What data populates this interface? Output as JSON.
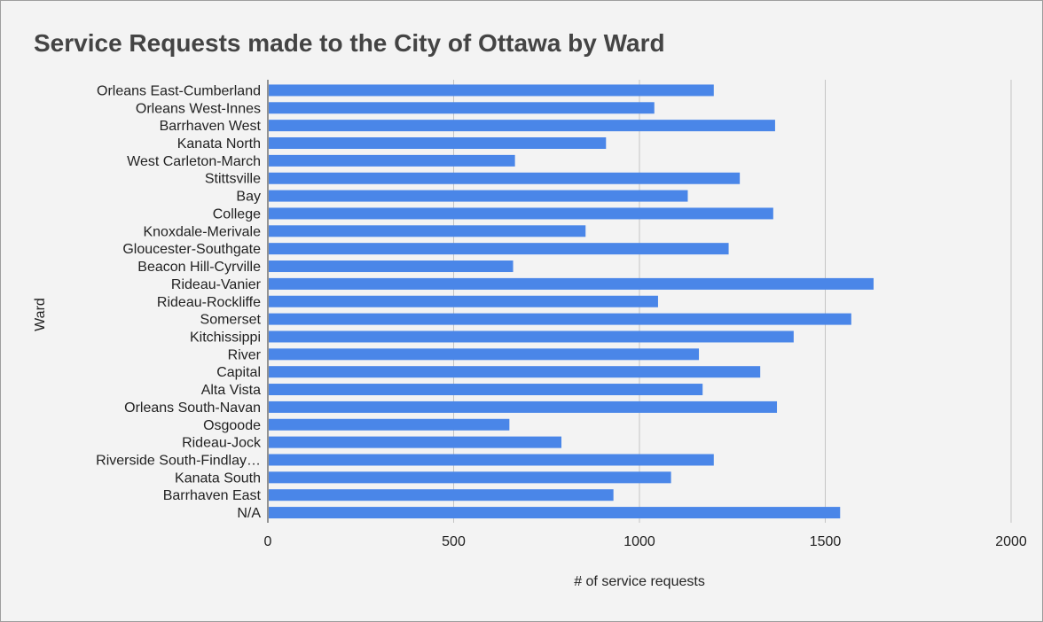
{
  "chart_data": {
    "type": "bar",
    "orientation": "horizontal",
    "title": "Service Requests made to the City of Ottawa by Ward",
    "xlabel": "# of service requests",
    "ylabel": "Ward",
    "xlim": [
      0,
      2000
    ],
    "xticks": [
      0,
      500,
      1000,
      1500,
      2000
    ],
    "grid": true,
    "legend": "none",
    "bar_color": "#4a86e8",
    "categories": [
      "Orleans East-Cumberland",
      "Orleans West-Innes",
      "Barrhaven West",
      "Kanata North",
      "West Carleton-March",
      "Stittsville",
      "Bay",
      "College",
      "Knoxdale-Merivale",
      "Gloucester-Southgate",
      "Beacon Hill-Cyrville",
      "Rideau-Vanier",
      "Rideau-Rockliffe",
      "Somerset",
      "Kitchissippi",
      "River",
      "Capital",
      "Alta Vista",
      "Orleans South-Navan",
      "Osgoode",
      "Rideau-Jock",
      "Riverside South-Findlay…",
      "Kanata South",
      "Barrhaven East",
      "N/A"
    ],
    "values": [
      1200,
      1040,
      1365,
      910,
      665,
      1270,
      1130,
      1360,
      855,
      1240,
      660,
      1630,
      1050,
      1570,
      1415,
      1160,
      1325,
      1170,
      1370,
      650,
      790,
      1200,
      1085,
      930,
      1540
    ]
  }
}
